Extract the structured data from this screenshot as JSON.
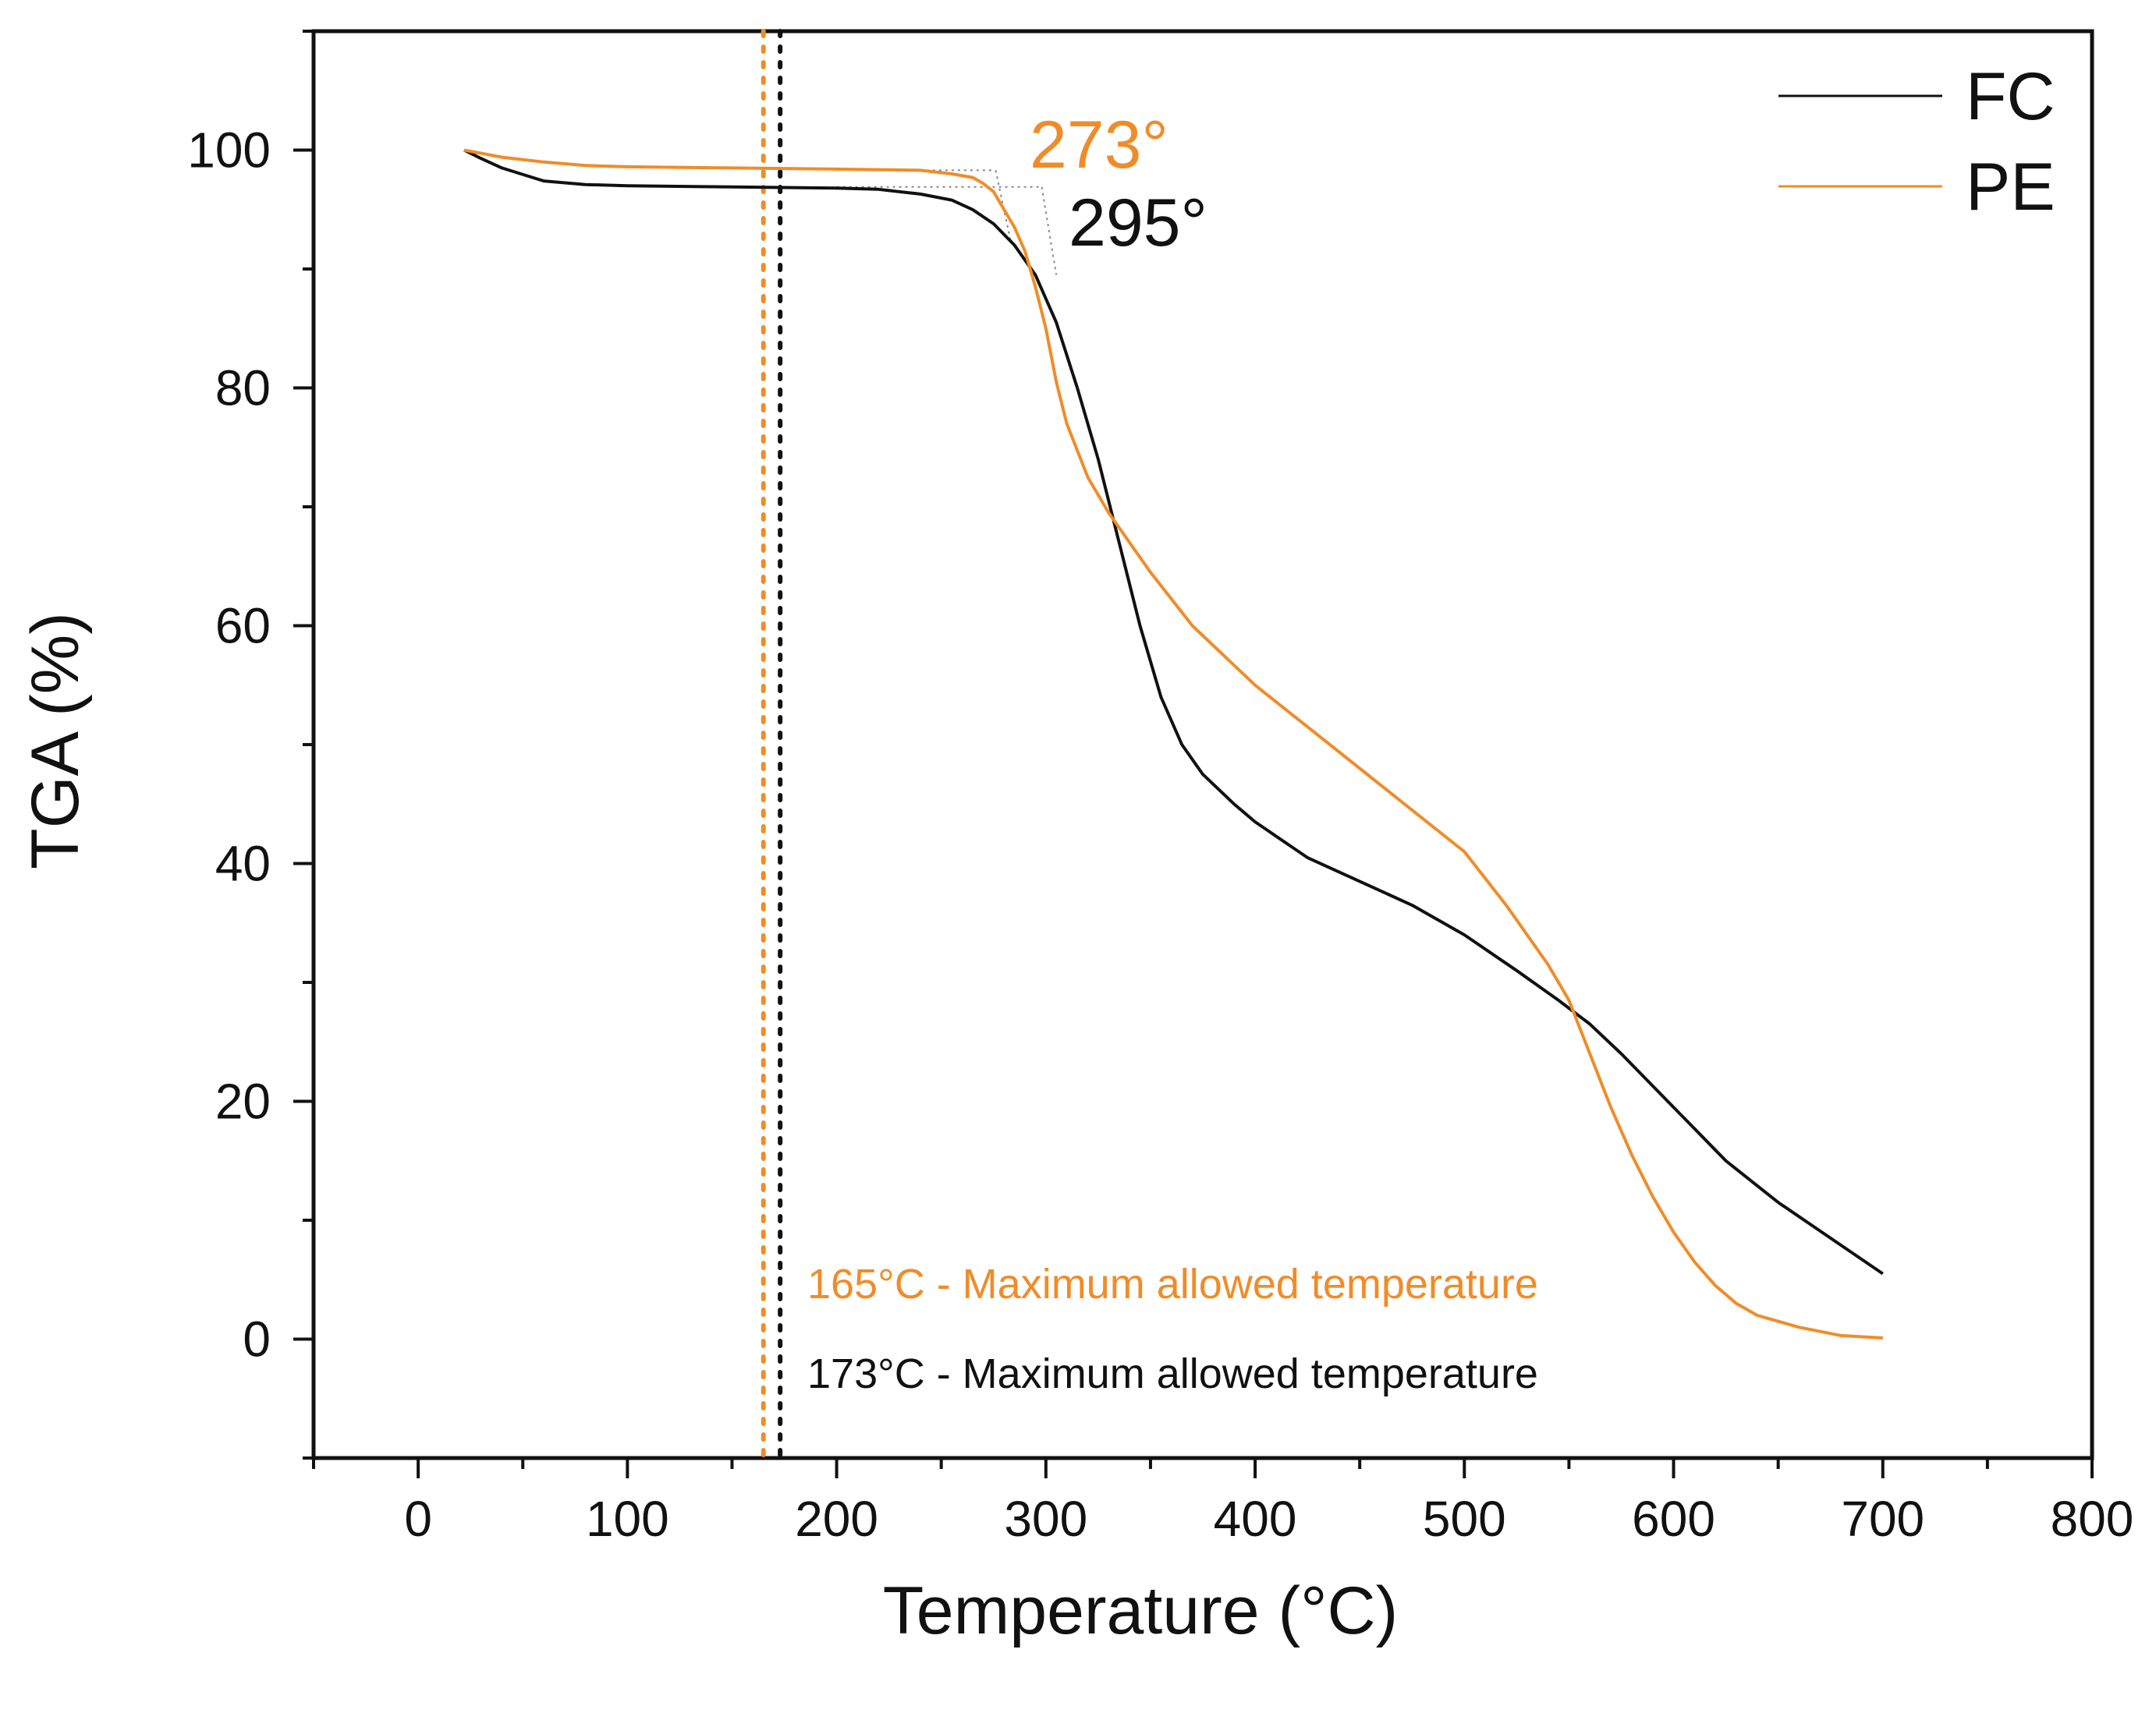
{
  "chart_data": {
    "type": "line",
    "xlabel": "Temperature (°C)",
    "ylabel": "TGA (%)",
    "xlim": [
      -50,
      800
    ],
    "ylim": [
      -10,
      110
    ],
    "x_ticks": [
      0,
      100,
      200,
      300,
      400,
      500,
      600,
      700,
      800
    ],
    "y_ticks": [
      0,
      20,
      40,
      60,
      80,
      100
    ],
    "x_tick_labels": [
      "0",
      "100",
      "200",
      "300",
      "400",
      "500",
      "600",
      "700",
      "800"
    ],
    "y_tick_labels": [
      "0",
      "20",
      "40",
      "60",
      "80",
      "100"
    ],
    "legend_position": "top-right",
    "colors": {
      "FC": "#111111",
      "PE": "#f08c28"
    },
    "series": [
      {
        "name": "FC",
        "x": [
          22,
          30,
          40,
          60,
          80,
          100,
          150,
          200,
          220,
          240,
          255,
          265,
          275,
          285,
          295,
          305,
          315,
          325,
          335,
          345,
          355,
          365,
          375,
          390,
          400,
          425,
          450,
          475,
          500,
          525,
          545,
          560,
          575,
          600,
          625,
          650,
          675,
          700
        ],
        "y": [
          100,
          99.3,
          98.5,
          97.4,
          97.1,
          97.0,
          96.9,
          96.8,
          96.7,
          96.3,
          95.8,
          95.0,
          93.8,
          92.0,
          89.5,
          85.5,
          80.0,
          74.0,
          67.0,
          60.0,
          54.0,
          50.0,
          47.5,
          45.0,
          43.5,
          40.5,
          38.5,
          36.5,
          34.0,
          31.0,
          28.5,
          26.5,
          24.0,
          19.5,
          15.0,
          11.5,
          8.5,
          5.5
        ]
      },
      {
        "name": "PE",
        "x": [
          22,
          40,
          60,
          80,
          100,
          150,
          200,
          240,
          255,
          265,
          270,
          275,
          280,
          285,
          290,
          295,
          300,
          305,
          310,
          320,
          330,
          340,
          350,
          370,
          400,
          425,
          450,
          475,
          500,
          520,
          540,
          550,
          560,
          570,
          580,
          590,
          600,
          610,
          620,
          630,
          640,
          660,
          680,
          700
        ],
        "y": [
          100,
          99.4,
          99.0,
          98.7,
          98.6,
          98.5,
          98.4,
          98.3,
          98.0,
          97.7,
          97.2,
          96.5,
          95.0,
          93.5,
          91.5,
          88.5,
          85.0,
          80.5,
          77.0,
          72.5,
          69.5,
          67.0,
          64.5,
          60.0,
          55.0,
          51.5,
          48.0,
          44.5,
          41.0,
          36.5,
          31.5,
          28.5,
          24.0,
          19.5,
          15.5,
          12.0,
          9.0,
          6.5,
          4.5,
          3.0,
          2.0,
          1.0,
          0.3,
          0.1
        ]
      }
    ],
    "onset_markers": [
      {
        "series": "PE",
        "label": "273°",
        "x": 273,
        "level": 98.3,
        "intercept_y": 92.5
      },
      {
        "series": "FC",
        "label": "295°",
        "x": 295,
        "level": 96.9,
        "intercept_y": 89.5
      }
    ],
    "vertical_limits": [
      {
        "series": "PE",
        "x": 165,
        "label": "165°C - Maximum allowed temperature"
      },
      {
        "series": "FC",
        "x": 173,
        "label": "173°C - Maximum allowed temperature"
      }
    ]
  }
}
